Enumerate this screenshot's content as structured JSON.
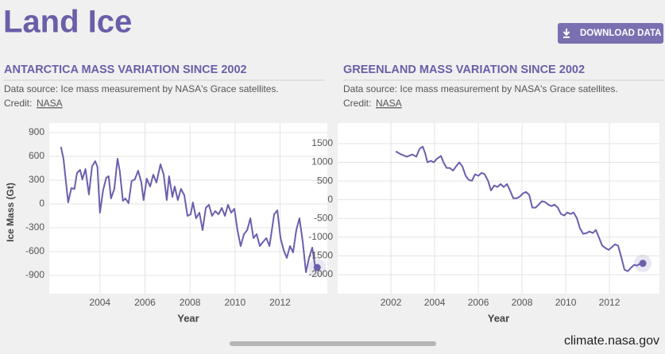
{
  "header": {
    "title": "Land Ice",
    "button": "DOWNLOAD DATA"
  },
  "panels": [
    {
      "heading": "ANTARCTICA MASS VARIATION SINCE 2002",
      "source": "Data source: Ice mass measurement by NASA's Grace satellites.",
      "credit_label": "Credit:",
      "credit_link": "NASA"
    },
    {
      "heading": "GREENLAND MASS VARIATION SINCE 2002",
      "source": "Data source: Ice mass measurement by NASA's Grace satellites.",
      "credit_label": "Credit:",
      "credit_link": "NASA"
    }
  ],
  "chart_data": [
    {
      "type": "line",
      "xlabel": "Year",
      "ylabel": "Ice Mass (Gt)",
      "color": "#6a5fad",
      "grid": true,
      "x": [
        2002.27,
        2002.38,
        2002.59,
        2002.73,
        2002.87,
        2002.98,
        2003.12,
        2003.22,
        2003.36,
        2003.51,
        2003.65,
        2003.79,
        2003.89,
        2004.0,
        2004.14,
        2004.28,
        2004.39,
        2004.49,
        2004.64,
        2004.78,
        2004.88,
        2005.02,
        2005.13,
        2005.27,
        2005.41,
        2005.55,
        2005.7,
        2005.84,
        2005.94,
        2006.08,
        2006.23,
        2006.37,
        2006.51,
        2006.69,
        2006.83,
        2006.97,
        2007.07,
        2007.22,
        2007.32,
        2007.46,
        2007.6,
        2007.75,
        2007.89,
        2008.03,
        2008.13,
        2008.27,
        2008.42,
        2008.56,
        2008.7,
        2008.84,
        2008.98,
        2009.12,
        2009.27,
        2009.41,
        2009.55,
        2009.69,
        2009.83,
        2009.97,
        2010.11,
        2010.25,
        2010.4,
        2010.54,
        2010.68,
        2010.82,
        2010.96,
        2011.1,
        2011.24,
        2011.39,
        2011.53,
        2011.74,
        2011.88,
        2012.02,
        2012.16,
        2012.3,
        2012.44,
        2012.58,
        2012.72,
        2012.86,
        2013.01,
        2013.15,
        2013.29,
        2013.43,
        2013.57,
        2013.65
      ],
      "values": [
        720,
        570,
        20,
        200,
        190,
        390,
        430,
        310,
        440,
        120,
        470,
        540,
        470,
        -110,
        170,
        330,
        350,
        70,
        190,
        570,
        420,
        40,
        70,
        10,
        290,
        310,
        420,
        270,
        50,
        320,
        220,
        370,
        270,
        500,
        370,
        50,
        350,
        90,
        220,
        50,
        190,
        110,
        -150,
        -130,
        20,
        -180,
        -110,
        -330,
        -50,
        -10,
        -150,
        -90,
        -130,
        -50,
        -150,
        -10,
        -110,
        -60,
        -330,
        -530,
        -380,
        -330,
        -180,
        -430,
        -380,
        -530,
        -480,
        -430,
        -530,
        -130,
        -80,
        -430,
        -580,
        -680,
        -530,
        -610,
        -330,
        -180,
        -480,
        -860,
        -680,
        -550,
        -810,
        -800
      ],
      "xlim": [
        2001.75,
        2014.1
      ],
      "xticks": [
        2004,
        2006,
        2008,
        2010,
        2012
      ],
      "ylim": [
        -1130,
        1020
      ],
      "yticks": [
        900,
        600,
        300,
        0,
        -300,
        -600,
        -900
      ]
    },
    {
      "type": "line",
      "xlabel": "Year",
      "color": "#6a5fad",
      "grid": true,
      "x": [
        2002.22,
        2002.47,
        2002.73,
        2002.98,
        2003.16,
        2003.31,
        2003.45,
        2003.56,
        2003.67,
        2003.82,
        2003.96,
        2004.11,
        2004.29,
        2004.4,
        2004.55,
        2004.69,
        2004.84,
        2004.98,
        2005.13,
        2005.27,
        2005.42,
        2005.56,
        2005.71,
        2005.85,
        2006.0,
        2006.15,
        2006.29,
        2006.44,
        2006.58,
        2006.73,
        2006.87,
        2007.02,
        2007.16,
        2007.31,
        2007.45,
        2007.6,
        2007.75,
        2007.89,
        2008.04,
        2008.18,
        2008.33,
        2008.47,
        2008.62,
        2008.76,
        2008.91,
        2009.05,
        2009.2,
        2009.35,
        2009.49,
        2009.64,
        2009.78,
        2009.93,
        2010.07,
        2010.22,
        2010.36,
        2010.51,
        2010.65,
        2010.8,
        2010.95,
        2011.09,
        2011.24,
        2011.38,
        2011.53,
        2011.67,
        2011.82,
        2011.96,
        2012.11,
        2012.25,
        2012.4,
        2012.55,
        2012.69,
        2012.84,
        2012.98,
        2013.13,
        2013.27,
        2013.42,
        2013.53
      ],
      "values": [
        1290,
        1210,
        1150,
        1210,
        1150,
        1360,
        1420,
        1250,
        1000,
        1040,
        1000,
        1100,
        1170,
        1000,
        850,
        850,
        780,
        890,
        1000,
        890,
        640,
        530,
        510,
        680,
        640,
        720,
        680,
        510,
        250,
        380,
        340,
        420,
        340,
        420,
        250,
        40,
        40,
        80,
        170,
        210,
        130,
        -210,
        -210,
        -130,
        -40,
        -60,
        -130,
        -170,
        -130,
        -210,
        -380,
        -420,
        -340,
        -380,
        -340,
        -490,
        -760,
        -910,
        -890,
        -850,
        -890,
        -810,
        -1020,
        -1230,
        -1290,
        -1340,
        -1270,
        -1190,
        -1230,
        -1550,
        -1870,
        -1910,
        -1820,
        -1740,
        -1760,
        -1700,
        -1700
      ],
      "xlim": [
        1999.56,
        2014.29
      ],
      "xticks": [
        2002,
        2004,
        2006,
        2008,
        2010,
        2012
      ],
      "ylim": [
        -2510,
        2050
      ],
      "yticks": [
        1500,
        1000,
        500,
        0,
        -500,
        -1000,
        -1500,
        -2000
      ]
    }
  ],
  "footer": "climate.nasa.gov"
}
